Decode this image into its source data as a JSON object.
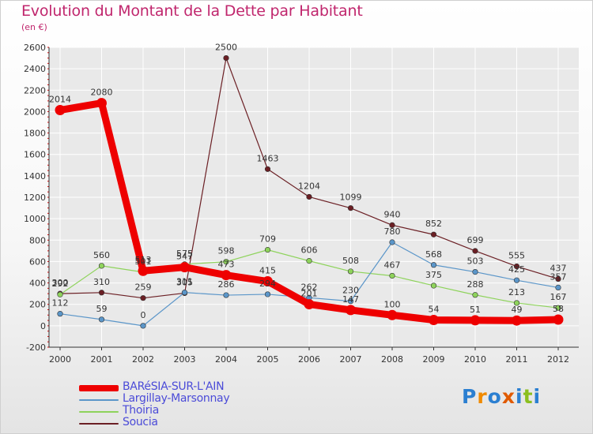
{
  "header": {
    "title": "Evolution du Montant de la Dette par Habitant",
    "subtitle": "(en €)"
  },
  "colors": {
    "title": "#c0266d",
    "legend_text": "#4b4bd8",
    "axis": "#333333",
    "grid": "#ffffff",
    "tick_mark": "#e00000"
  },
  "logo": {
    "text": "Proxiti",
    "letters": [
      "P",
      "r",
      "o",
      "x",
      "i",
      "t",
      "i"
    ],
    "colors": [
      "#2b7fd1",
      "#f08a00",
      "#2b7fd1",
      "#e05a00",
      "#2b7fd1",
      "#8bbf1f",
      "#2b7fd1"
    ]
  },
  "chart_data": {
    "type": "line",
    "title": "Evolution du Montant de la Dette par Habitant",
    "subtitle": "(en €)",
    "xlabel": "",
    "ylabel": "",
    "x": [
      "2000",
      "2001",
      "2002",
      "2003",
      "2004",
      "2005",
      "2006",
      "2007",
      "2008",
      "2009",
      "2010",
      "2011",
      "2012"
    ],
    "ylim": [
      -200,
      2600
    ],
    "yticks": [
      -200,
      0,
      200,
      400,
      600,
      800,
      1000,
      1200,
      1400,
      1600,
      1800,
      2000,
      2200,
      2400,
      2600
    ],
    "grid": true,
    "legend_position": "bottom-left",
    "series": [
      {
        "name": "BARéSIA-SUR-L'AIN",
        "color": "#ee0000",
        "values": [
          2014,
          2080,
          513,
          547,
          473,
          415,
          201,
          147,
          100,
          54,
          51,
          49,
          58
        ]
      },
      {
        "name": "Largillay-Marsonnay",
        "color": "#5b96c9",
        "values": [
          112,
          59,
          0,
          311,
          286,
          294,
          262,
          230,
          780,
          568,
          503,
          425,
          357
        ]
      },
      {
        "name": "Thoiria",
        "color": "#8ed35b",
        "values": [
          292,
          560,
          501,
          575,
          598,
          709,
          606,
          508,
          467,
          375,
          288,
          213,
          167
        ]
      },
      {
        "name": "Soucia",
        "color": "#6b1f24",
        "values": [
          300,
          310,
          259,
          305,
          2500,
          1463,
          1204,
          1099,
          940,
          852,
          699,
          555,
          437
        ]
      }
    ]
  }
}
